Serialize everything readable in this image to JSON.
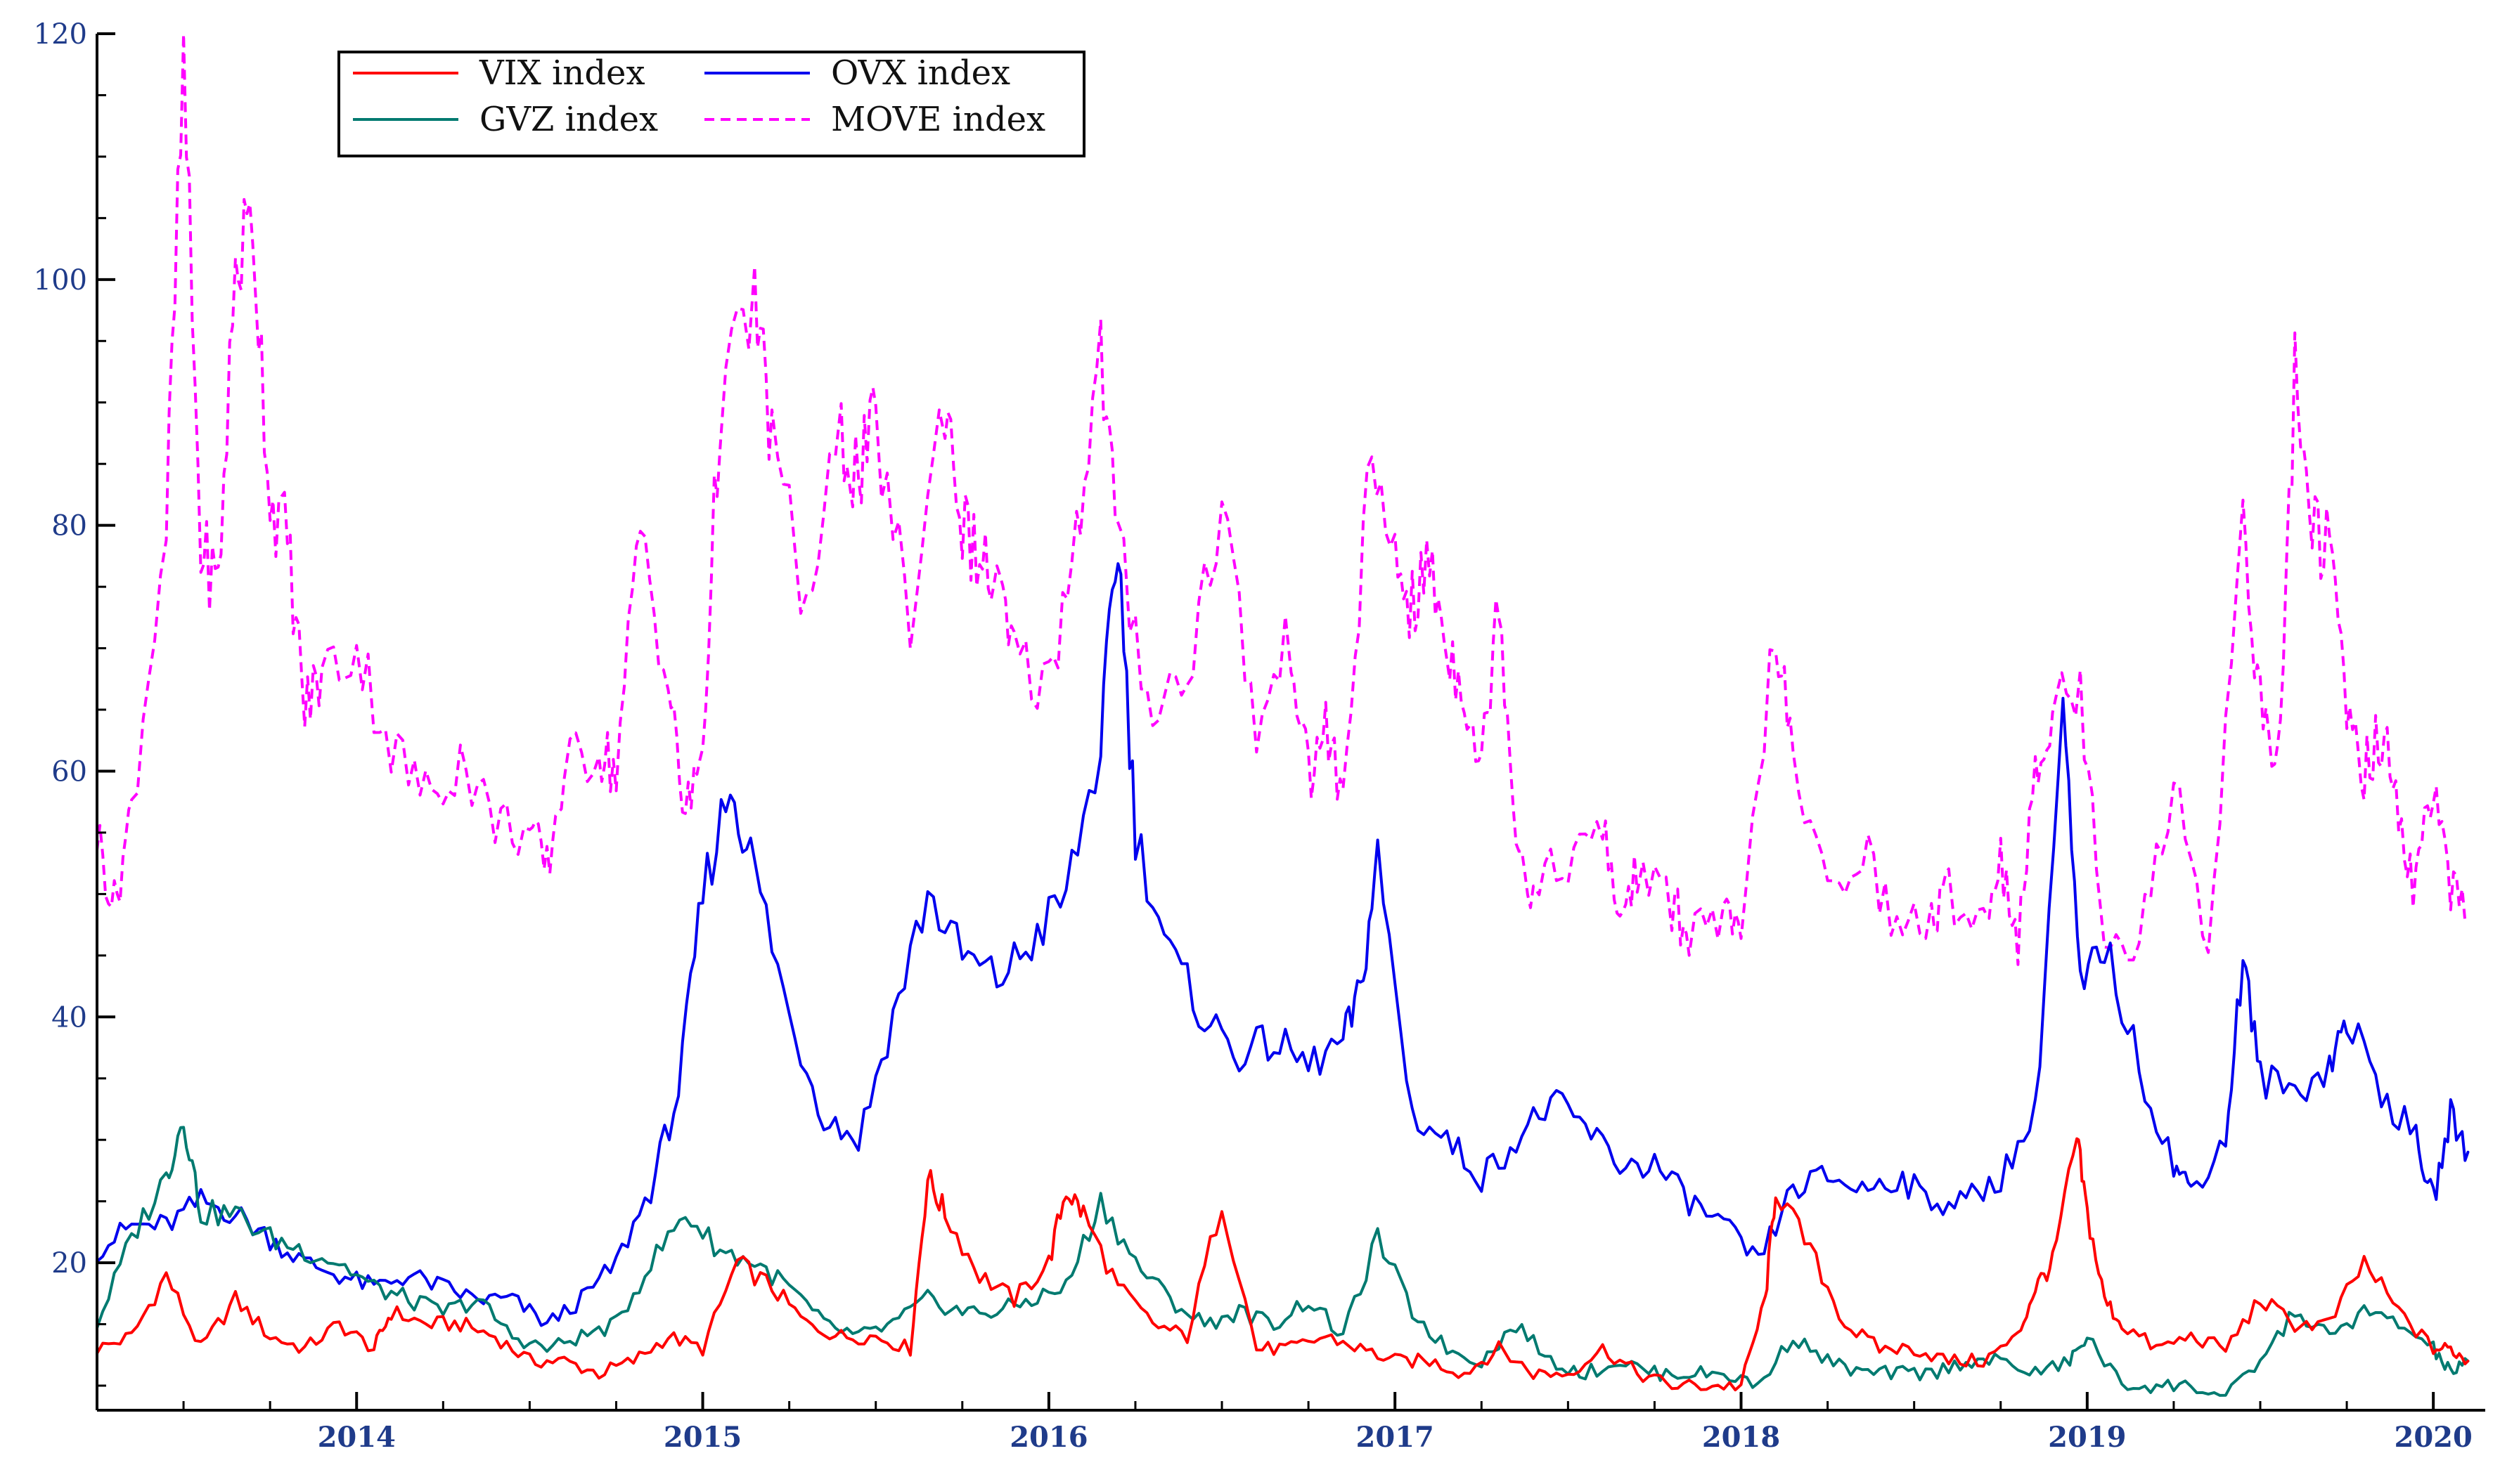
{
  "chart_data": {
    "type": "line",
    "title": "",
    "xlabel": "",
    "ylabel": "",
    "xlim": [
      2013.25,
      2020.15
    ],
    "ylim": [
      8,
      120
    ],
    "y_ticks": [
      20,
      40,
      60,
      80,
      100,
      120
    ],
    "x_ticks": [
      {
        "value": 2014,
        "label": "2014"
      },
      {
        "value": 2015,
        "label": "2015"
      },
      {
        "value": 2016,
        "label": "2016"
      },
      {
        "value": 2017,
        "label": "2017"
      },
      {
        "value": 2018,
        "label": "2018"
      },
      {
        "value": 2019,
        "label": "2019"
      },
      {
        "value": 2020,
        "label": "2020"
      }
    ],
    "grid": false,
    "legend": "top-left",
    "series": [
      {
        "name": "VIX index",
        "color": "#ff0000",
        "dash": "solid",
        "x": [
          2013.25,
          2013.35,
          2013.45,
          2013.55,
          2013.65,
          2013.75,
          2013.85,
          2013.95,
          2014.05,
          2014.1,
          2014.2,
          2014.3,
          2014.4,
          2014.5,
          2014.6,
          2014.7,
          2014.8,
          2014.9,
          2015.0,
          2015.1,
          2015.2,
          2015.3,
          2015.4,
          2015.5,
          2015.6,
          2015.65,
          2015.7,
          2015.8,
          2015.9,
          2016.0,
          2016.05,
          2016.1,
          2016.2,
          2016.3,
          2016.4,
          2016.5,
          2016.6,
          2016.7,
          2016.8,
          2016.9,
          2017.0,
          2017.1,
          2017.2,
          2017.3,
          2017.4,
          2017.5,
          2017.6,
          2017.7,
          2017.8,
          2017.9,
          2018.0,
          2018.07,
          2018.1,
          2018.2,
          2018.3,
          2018.4,
          2018.5,
          2018.6,
          2018.7,
          2018.8,
          2018.85,
          2018.9,
          2018.97,
          2019.0,
          2019.05,
          2019.1,
          2019.2,
          2019.3,
          2019.4,
          2019.5,
          2019.6,
          2019.7,
          2019.8,
          2019.9,
          2020.0,
          2020.05,
          2020.1
        ],
        "y": [
          13,
          14,
          19,
          13,
          17,
          14,
          13,
          15,
          13,
          16,
          15,
          15,
          14,
          12,
          12,
          11,
          12,
          14,
          13,
          20,
          18,
          15,
          14,
          14,
          13,
          27,
          24,
          19,
          17,
          20,
          26,
          24,
          18,
          15,
          14,
          25,
          13,
          13,
          14,
          13,
          12,
          12,
          11,
          13,
          11,
          11,
          13,
          11,
          10,
          10,
          10,
          17,
          26,
          21,
          15,
          13,
          13,
          12,
          12,
          14,
          18,
          20,
          30,
          24,
          17,
          15,
          13,
          14,
          13,
          17,
          15,
          15,
          20,
          16,
          13,
          13,
          12
        ]
      },
      {
        "name": "OVX index",
        "color": "#0000ee",
        "dash": "solid",
        "x": [
          2013.25,
          2013.35,
          2013.45,
          2013.55,
          2013.65,
          2013.75,
          2013.85,
          2013.95,
          2014.05,
          2014.15,
          2014.25,
          2014.35,
          2014.45,
          2014.55,
          2014.65,
          2014.75,
          2014.85,
          2014.93,
          2015.0,
          2015.08,
          2015.15,
          2015.25,
          2015.35,
          2015.45,
          2015.55,
          2015.65,
          2015.75,
          2015.85,
          2015.95,
          2016.05,
          2016.15,
          2016.2,
          2016.25,
          2016.35,
          2016.45,
          2016.55,
          2016.65,
          2016.75,
          2016.85,
          2016.9,
          2016.95,
          2017.05,
          2017.15,
          2017.25,
          2017.35,
          2017.45,
          2017.55,
          2017.65,
          2017.75,
          2017.85,
          2017.95,
          2018.05,
          2018.15,
          2018.25,
          2018.35,
          2018.45,
          2018.55,
          2018.65,
          2018.75,
          2018.85,
          2018.93,
          2018.98,
          2019.05,
          2019.15,
          2019.25,
          2019.3,
          2019.4,
          2019.45,
          2019.5,
          2019.6,
          2019.7,
          2019.75,
          2019.85,
          2019.95,
          2020.0,
          2020.05,
          2020.1
        ],
        "y": [
          21,
          23,
          23,
          25,
          24,
          22,
          20,
          19,
          18,
          19,
          18,
          17,
          17,
          15,
          17,
          20,
          26,
          34,
          50,
          59,
          52,
          40,
          32,
          30,
          40,
          50,
          45,
          43,
          46,
          50,
          62,
          79,
          55,
          45,
          40,
          37,
          38,
          36,
          38,
          42,
          53,
          32,
          30,
          27,
          30,
          33,
          31,
          28,
          28,
          25,
          23,
          20,
          26,
          27,
          26,
          27,
          25,
          25,
          27,
          32,
          65,
          42,
          46,
          36,
          28,
          26,
          30,
          45,
          35,
          34,
          36,
          40,
          34,
          30,
          25,
          32,
          29
        ]
      },
      {
        "name": "GVZ index",
        "color": "#007a70",
        "dash": "solid",
        "x": [
          2013.25,
          2013.35,
          2013.45,
          2013.5,
          2013.55,
          2013.65,
          2013.75,
          2013.85,
          2013.95,
          2014.05,
          2014.15,
          2014.25,
          2014.35,
          2014.45,
          2014.55,
          2014.65,
          2014.75,
          2014.85,
          2014.95,
          2015.05,
          2015.15,
          2015.25,
          2015.35,
          2015.45,
          2015.55,
          2015.65,
          2015.75,
          2015.85,
          2015.95,
          2016.05,
          2016.15,
          2016.25,
          2016.35,
          2016.45,
          2016.55,
          2016.65,
          2016.75,
          2016.85,
          2016.95,
          2017.05,
          2017.15,
          2017.25,
          2017.35,
          2017.45,
          2017.55,
          2017.65,
          2017.75,
          2017.85,
          2017.95,
          2018.05,
          2018.15,
          2018.25,
          2018.35,
          2018.45,
          2018.55,
          2018.65,
          2018.75,
          2018.85,
          2018.95,
          2019.0,
          2019.1,
          2019.2,
          2019.3,
          2019.4,
          2019.5,
          2019.6,
          2019.7,
          2019.8,
          2019.9,
          2020.0,
          2020.05,
          2020.1
        ],
        "y": [
          15,
          22,
          27,
          32,
          24,
          24,
          22,
          21,
          20,
          18,
          17,
          16,
          17,
          14,
          13,
          14,
          15,
          20,
          24,
          21,
          20,
          18,
          15,
          14,
          15,
          17,
          16,
          16,
          17,
          18,
          25,
          20,
          17,
          15,
          16,
          15,
          17,
          14,
          22,
          16,
          13,
          12,
          15,
          12,
          11,
          12,
          11,
          11,
          11,
          10,
          14,
          12,
          11,
          11,
          11,
          12,
          12,
          11,
          12,
          14,
          10,
          10,
          10,
          9,
          12,
          16,
          14,
          16,
          15,
          13,
          11,
          12
        ]
      },
      {
        "name": "MOVE index",
        "color": "#ff00ff",
        "dash": "dashed",
        "x": [
          2013.25,
          2013.3,
          2013.35,
          2013.45,
          2013.5,
          2013.55,
          2013.6,
          2013.65,
          2013.7,
          2013.75,
          2013.8,
          2013.85,
          2013.9,
          2014.0,
          2014.1,
          2014.2,
          2014.3,
          2014.4,
          2014.5,
          2014.55,
          2014.6,
          2014.7,
          2014.75,
          2014.82,
          2014.9,
          2014.95,
          2015.0,
          2015.05,
          2015.15,
          2015.2,
          2015.3,
          2015.4,
          2015.45,
          2015.5,
          2015.6,
          2015.7,
          2015.75,
          2015.8,
          2015.85,
          2015.9,
          2016.0,
          2016.08,
          2016.15,
          2016.2,
          2016.3,
          2016.4,
          2016.5,
          2016.6,
          2016.7,
          2016.75,
          2016.8,
          2016.85,
          2016.92,
          2017.0,
          2017.05,
          2017.1,
          2017.15,
          2017.2,
          2017.25,
          2017.3,
          2017.35,
          2017.4,
          2017.5,
          2017.6,
          2017.65,
          2017.7,
          2017.8,
          2017.85,
          2017.95,
          2018.0,
          2018.1,
          2018.15,
          2018.25,
          2018.35,
          2018.45,
          2018.55,
          2018.6,
          2018.7,
          2018.75,
          2018.8,
          2018.85,
          2018.9,
          2018.98,
          2019.05,
          2019.15,
          2019.25,
          2019.35,
          2019.45,
          2019.5,
          2019.55,
          2019.6,
          2019.65,
          2019.7,
          2019.75,
          2019.8,
          2019.85,
          2019.9,
          2019.95,
          2020.0,
          2020.05,
          2020.1
        ],
        "y": [
          55,
          49,
          57,
          80,
          117,
          78,
          75,
          101,
          105,
          82,
          79,
          65,
          68,
          70,
          62,
          58,
          61,
          56,
          55,
          52,
          60,
          62,
          60,
          80,
          67,
          56,
          62,
          90,
          98,
          87,
          73,
          87,
          84,
          88,
          72,
          91,
          80,
          77,
          75,
          69,
          67,
          80,
          94,
          78,
          65,
          68,
          82,
          63,
          71,
          59,
          64,
          57,
          83,
          78,
          73,
          77,
          70,
          67,
          60,
          75,
          55,
          50,
          53,
          55,
          48,
          52,
          49,
          47,
          48,
          46,
          72,
          60,
          50,
          54,
          47,
          48,
          50,
          48,
          53,
          46,
          59,
          66,
          66,
          47,
          46,
          59,
          46,
          81,
          65,
          60,
          92,
          80,
          78,
          65,
          60,
          63,
          57,
          50,
          60,
          50,
          48
        ]
      }
    ]
  }
}
